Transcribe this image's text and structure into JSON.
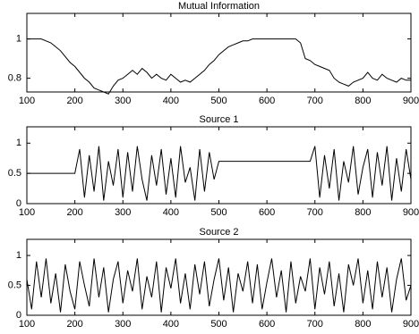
{
  "chart_data": [
    {
      "type": "line",
      "title": "Mutual Information",
      "x": [
        100,
        110,
        120,
        130,
        140,
        150,
        160,
        170,
        180,
        190,
        200,
        210,
        220,
        230,
        240,
        250,
        260,
        270,
        280,
        290,
        300,
        310,
        320,
        330,
        340,
        350,
        360,
        370,
        380,
        390,
        400,
        410,
        420,
        430,
        440,
        450,
        460,
        470,
        480,
        490,
        500,
        510,
        520,
        530,
        540,
        550,
        560,
        570,
        580,
        590,
        600,
        610,
        620,
        630,
        640,
        650,
        660,
        670,
        680,
        690,
        700,
        710,
        720,
        730,
        740,
        750,
        760,
        770,
        780,
        790,
        800,
        810,
        820,
        830,
        840,
        850,
        860,
        870,
        880,
        890,
        900
      ],
      "values": [
        1,
        1,
        1,
        1,
        0.99,
        0.98,
        0.96,
        0.94,
        0.91,
        0.88,
        0.86,
        0.83,
        0.8,
        0.78,
        0.75,
        0.74,
        0.73,
        0.72,
        0.76,
        0.79,
        0.8,
        0.82,
        0.84,
        0.82,
        0.85,
        0.83,
        0.8,
        0.82,
        0.8,
        0.79,
        0.82,
        0.8,
        0.78,
        0.79,
        0.78,
        0.8,
        0.82,
        0.84,
        0.87,
        0.89,
        0.92,
        0.94,
        0.96,
        0.97,
        0.98,
        0.99,
        0.99,
        1,
        1,
        1,
        1,
        1,
        1,
        1,
        1,
        1,
        1,
        0.98,
        0.9,
        0.89,
        0.87,
        0.86,
        0.85,
        0.84,
        0.8,
        0.78,
        0.77,
        0.76,
        0.78,
        0.79,
        0.8,
        0.83,
        0.8,
        0.79,
        0.82,
        0.8,
        0.79,
        0.78,
        0.8,
        0.79,
        0.79
      ],
      "color": "#000000",
      "xlim": [
        100,
        900
      ],
      "xticks": [
        100,
        200,
        300,
        400,
        500,
        600,
        700,
        800,
        900
      ],
      "ylim": [
        0.73,
        1.13
      ],
      "yticks": [
        0.8,
        1
      ]
    },
    {
      "type": "line",
      "title": "Source 1",
      "x": [
        100,
        110,
        120,
        130,
        140,
        150,
        160,
        170,
        180,
        190,
        200,
        210,
        220,
        230,
        240,
        250,
        260,
        270,
        280,
        290,
        300,
        310,
        320,
        330,
        340,
        350,
        360,
        370,
        380,
        390,
        400,
        410,
        420,
        430,
        440,
        450,
        460,
        470,
        480,
        490,
        500,
        510,
        520,
        530,
        540,
        550,
        560,
        570,
        580,
        590,
        600,
        610,
        620,
        630,
        640,
        650,
        660,
        670,
        680,
        690,
        700,
        710,
        720,
        730,
        740,
        750,
        760,
        770,
        780,
        790,
        800,
        810,
        820,
        830,
        840,
        850,
        860,
        870,
        880,
        890,
        900
      ],
      "values": [
        0.5,
        0.5,
        0.5,
        0.5,
        0.5,
        0.5,
        0.5,
        0.5,
        0.5,
        0.5,
        0.5,
        0.9,
        0.1,
        0.8,
        0.2,
        0.95,
        0.05,
        0.7,
        0.3,
        0.9,
        0.1,
        0.85,
        0.2,
        0.95,
        0.4,
        0.05,
        0.8,
        0.3,
        0.9,
        0.15,
        0.75,
        0.1,
        0.95,
        0.35,
        0.6,
        0.05,
        0.9,
        0.2,
        0.85,
        0.4,
        0.7,
        0.7,
        0.7,
        0.7,
        0.7,
        0.7,
        0.7,
        0.7,
        0.7,
        0.7,
        0.7,
        0.7,
        0.7,
        0.7,
        0.7,
        0.7,
        0.7,
        0.7,
        0.7,
        0.7,
        0.95,
        0.1,
        0.8,
        0.25,
        0.9,
        0.05,
        0.7,
        0.35,
        0.95,
        0.15,
        0.6,
        0.9,
        0.1,
        0.85,
        0.3,
        0.95,
        0.05,
        0.75,
        0.2,
        0.9,
        0.4
      ],
      "color": "#000000",
      "xlim": [
        100,
        900
      ],
      "xticks": [
        100,
        200,
        300,
        400,
        500,
        600,
        700,
        800,
        900
      ],
      "ylim": [
        0,
        1.27
      ],
      "yticks": [
        0,
        0.5,
        1
      ]
    },
    {
      "type": "line",
      "title": "Source 2",
      "x": [
        100,
        110,
        120,
        130,
        140,
        150,
        160,
        170,
        180,
        190,
        200,
        210,
        220,
        230,
        240,
        250,
        260,
        270,
        280,
        290,
        300,
        310,
        320,
        330,
        340,
        350,
        360,
        370,
        380,
        390,
        400,
        410,
        420,
        430,
        440,
        450,
        460,
        470,
        480,
        490,
        500,
        510,
        520,
        530,
        540,
        550,
        560,
        570,
        580,
        590,
        600,
        610,
        620,
        630,
        640,
        650,
        660,
        670,
        680,
        690,
        700,
        710,
        720,
        730,
        740,
        750,
        760,
        770,
        780,
        790,
        800,
        810,
        820,
        830,
        840,
        850,
        860,
        870,
        880,
        890,
        900
      ],
      "values": [
        0.6,
        0.1,
        0.9,
        0.3,
        0.95,
        0.2,
        0.7,
        0.05,
        0.85,
        0.4,
        0.1,
        0.9,
        0.5,
        0.15,
        0.95,
        0.3,
        0.8,
        0.05,
        0.6,
        0.9,
        0.2,
        0.75,
        0.4,
        0.95,
        0.1,
        0.65,
        0.3,
        0.9,
        0.05,
        0.8,
        0.45,
        0.95,
        0.2,
        0.7,
        0.1,
        0.85,
        0.35,
        0.9,
        0.15,
        0.6,
        0.95,
        0.25,
        0.8,
        0.05,
        0.7,
        0.4,
        0.9,
        0.2,
        0.85,
        0.1,
        0.55,
        0.95,
        0.3,
        0.75,
        0.05,
        0.9,
        0.2,
        0.65,
        0.4,
        0.95,
        0.1,
        0.8,
        0.35,
        0.9,
        0.15,
        0.7,
        0.05,
        0.85,
        0.5,
        0.95,
        0.2,
        0.75,
        0.1,
        0.9,
        0.3,
        0.8,
        0.05,
        0.6,
        0.95,
        0.25,
        0.5
      ],
      "color": "#000000",
      "xlim": [
        100,
        900
      ],
      "xticks": [
        100,
        200,
        300,
        400,
        500,
        600,
        700,
        800,
        900
      ],
      "ylim": [
        0,
        1.27
      ],
      "yticks": [
        0,
        0.5,
        1
      ]
    }
  ]
}
